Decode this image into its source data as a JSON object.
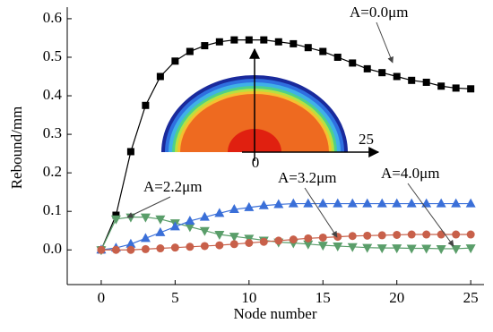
{
  "chart_data": {
    "type": "line",
    "x_label": "Node number",
    "y_label": "Rebound/mm",
    "x": [
      0,
      1,
      2,
      3,
      4,
      5,
      6,
      7,
      8,
      9,
      10,
      11,
      12,
      13,
      14,
      15,
      16,
      17,
      18,
      19,
      20,
      21,
      22,
      23,
      24,
      25
    ],
    "series": [
      {
        "name": "A=0.0μm",
        "color": "#000000",
        "marker": "square",
        "values": [
          0,
          0.09,
          0.255,
          0.375,
          0.45,
          0.49,
          0.515,
          0.53,
          0.54,
          0.545,
          0.545,
          0.545,
          0.54,
          0.535,
          0.525,
          0.515,
          0.5,
          0.485,
          0.47,
          0.46,
          0.45,
          0.44,
          0.435,
          0.425,
          0.42,
          0.418
        ]
      },
      {
        "name": "A=2.2μm",
        "color": "#5a9e6a",
        "marker": "triangle-down",
        "values": [
          0,
          0.08,
          0.085,
          0.085,
          0.08,
          0.07,
          0.06,
          0.05,
          0.04,
          0.035,
          0.03,
          0.025,
          0.02,
          0.018,
          0.015,
          0.012,
          0.01,
          0.008,
          0.006,
          0.005,
          0.005,
          0.004,
          0.004,
          0.003,
          0.003,
          0.005
        ]
      },
      {
        "name": "A=3.2μm",
        "color": "#3a6fd8",
        "marker": "triangle-up",
        "values": [
          0,
          0.005,
          0.015,
          0.03,
          0.045,
          0.06,
          0.075,
          0.085,
          0.095,
          0.105,
          0.11,
          0.115,
          0.118,
          0.12,
          0.12,
          0.12,
          0.12,
          0.12,
          0.12,
          0.12,
          0.12,
          0.12,
          0.12,
          0.12,
          0.12,
          0.12
        ]
      },
      {
        "name": "A=4.0μm",
        "color": "#c8604a",
        "marker": "circle",
        "values": [
          0,
          0,
          0,
          0.002,
          0.004,
          0.006,
          0.008,
          0.01,
          0.012,
          0.015,
          0.018,
          0.021,
          0.024,
          0.027,
          0.03,
          0.032,
          0.034,
          0.036,
          0.037,
          0.038,
          0.039,
          0.04,
          0.04,
          0.04,
          0.04,
          0.04
        ]
      }
    ],
    "xlim": [
      -2.3,
      25.9
    ],
    "xticks": [
      0,
      5,
      10,
      15,
      20,
      25
    ],
    "ylim": [
      -0.09,
      0.63
    ],
    "yticks": [
      {
        "value": 0,
        "label": "0.0"
      },
      0.1,
      0.2,
      0.3,
      0.4,
      0.5,
      0.6
    ],
    "inset": {
      "labels": [
        "0",
        "25"
      ]
    }
  }
}
